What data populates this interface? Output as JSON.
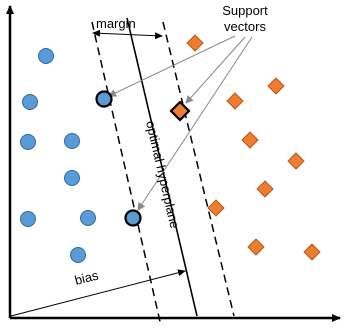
{
  "labels": {
    "margin": "margin",
    "support_vectors_line1": "Support",
    "support_vectors_line2": "vectors",
    "optimal_hyperplane": "optimal hyperplane",
    "bias": "bias"
  },
  "colors": {
    "class_a_fill": "#5b9bd5",
    "class_a_stroke": "#2f6aa3",
    "class_b_fill": "#ed7d31",
    "class_b_stroke": "#b85a18",
    "line": "#000000",
    "arrow": "#8a8a8a",
    "background": "#ffffff"
  },
  "legend": {
    "class_a_shape": "circle",
    "class_b_shape": "diamond"
  }
}
